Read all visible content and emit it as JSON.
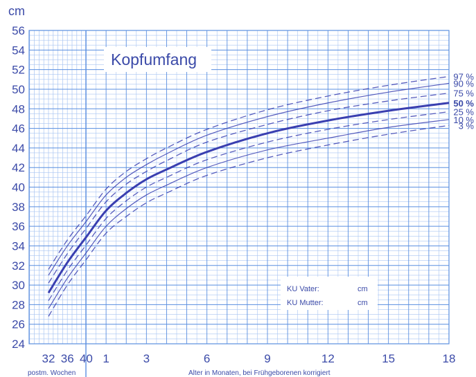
{
  "chart_data": {
    "type": "line",
    "title": "Kopfumfang",
    "ylabel": "cm",
    "xlabel_weeks": "postm. Wochen",
    "xlabel_months": "Alter in Monaten, bei Frühgeborenen korrigiert",
    "ylim": [
      24,
      56
    ],
    "yticks": [
      24,
      26,
      28,
      30,
      32,
      34,
      36,
      38,
      40,
      42,
      44,
      46,
      48,
      50,
      52,
      54,
      56
    ],
    "xticks_weeks": [
      "32",
      "36",
      "40"
    ],
    "xticks_months": [
      "1",
      "3",
      "6",
      "9",
      "12",
      "15",
      "18"
    ],
    "x_points": [
      "32 w",
      "36 w",
      "40 w",
      "1 mo",
      "2 mo",
      "3 mo",
      "4 mo",
      "6 mo",
      "9 mo",
      "12 mo",
      "15 mo",
      "18 mo"
    ],
    "grid": true,
    "series": [
      {
        "name": "97 %",
        "style": "dashed",
        "values": [
          31.6,
          34.6,
          37.1,
          39.8,
          41.6,
          42.9,
          44.0,
          45.9,
          47.9,
          49.3,
          50.4,
          51.3
        ]
      },
      {
        "name": "90 %",
        "style": "solid",
        "values": [
          31.0,
          34.0,
          36.5,
          39.2,
          41.0,
          42.3,
          43.4,
          45.3,
          47.2,
          48.6,
          49.7,
          50.6
        ]
      },
      {
        "name": "75 %",
        "style": "dashed",
        "values": [
          30.2,
          33.2,
          35.8,
          38.5,
          40.3,
          41.6,
          42.7,
          44.6,
          46.4,
          47.8,
          48.8,
          49.6
        ]
      },
      {
        "name": "50 %",
        "style": "bold",
        "values": [
          29.2,
          32.3,
          34.9,
          37.6,
          39.4,
          40.8,
          41.8,
          43.6,
          45.5,
          46.8,
          47.8,
          48.6
        ]
      },
      {
        "name": "25 %",
        "style": "dashed",
        "values": [
          28.4,
          31.5,
          34.1,
          36.8,
          38.6,
          40.0,
          41.0,
          42.8,
          44.6,
          45.9,
          46.9,
          47.7
        ]
      },
      {
        "name": "10 %",
        "style": "solid",
        "values": [
          27.6,
          30.7,
          33.3,
          36.0,
          37.8,
          39.2,
          40.2,
          42.0,
          43.8,
          45.0,
          46.1,
          46.9
        ]
      },
      {
        "name": "3 %",
        "style": "dashed",
        "values": [
          26.8,
          30.0,
          32.6,
          35.3,
          37.0,
          38.4,
          39.4,
          41.2,
          43.0,
          44.3,
          45.4,
          46.3
        ]
      }
    ],
    "annotations": {
      "ku_vater_label": "KU Vater:",
      "ku_vater_unit": "cm",
      "ku_mutter_label": "KU Mutter:",
      "ku_mutter_unit": "cm"
    },
    "colors": {
      "line": "#3a3fb0",
      "grid": "#5b8fe0",
      "grid_minor": "#a9c5f2",
      "text": "#3b4aa8"
    }
  }
}
